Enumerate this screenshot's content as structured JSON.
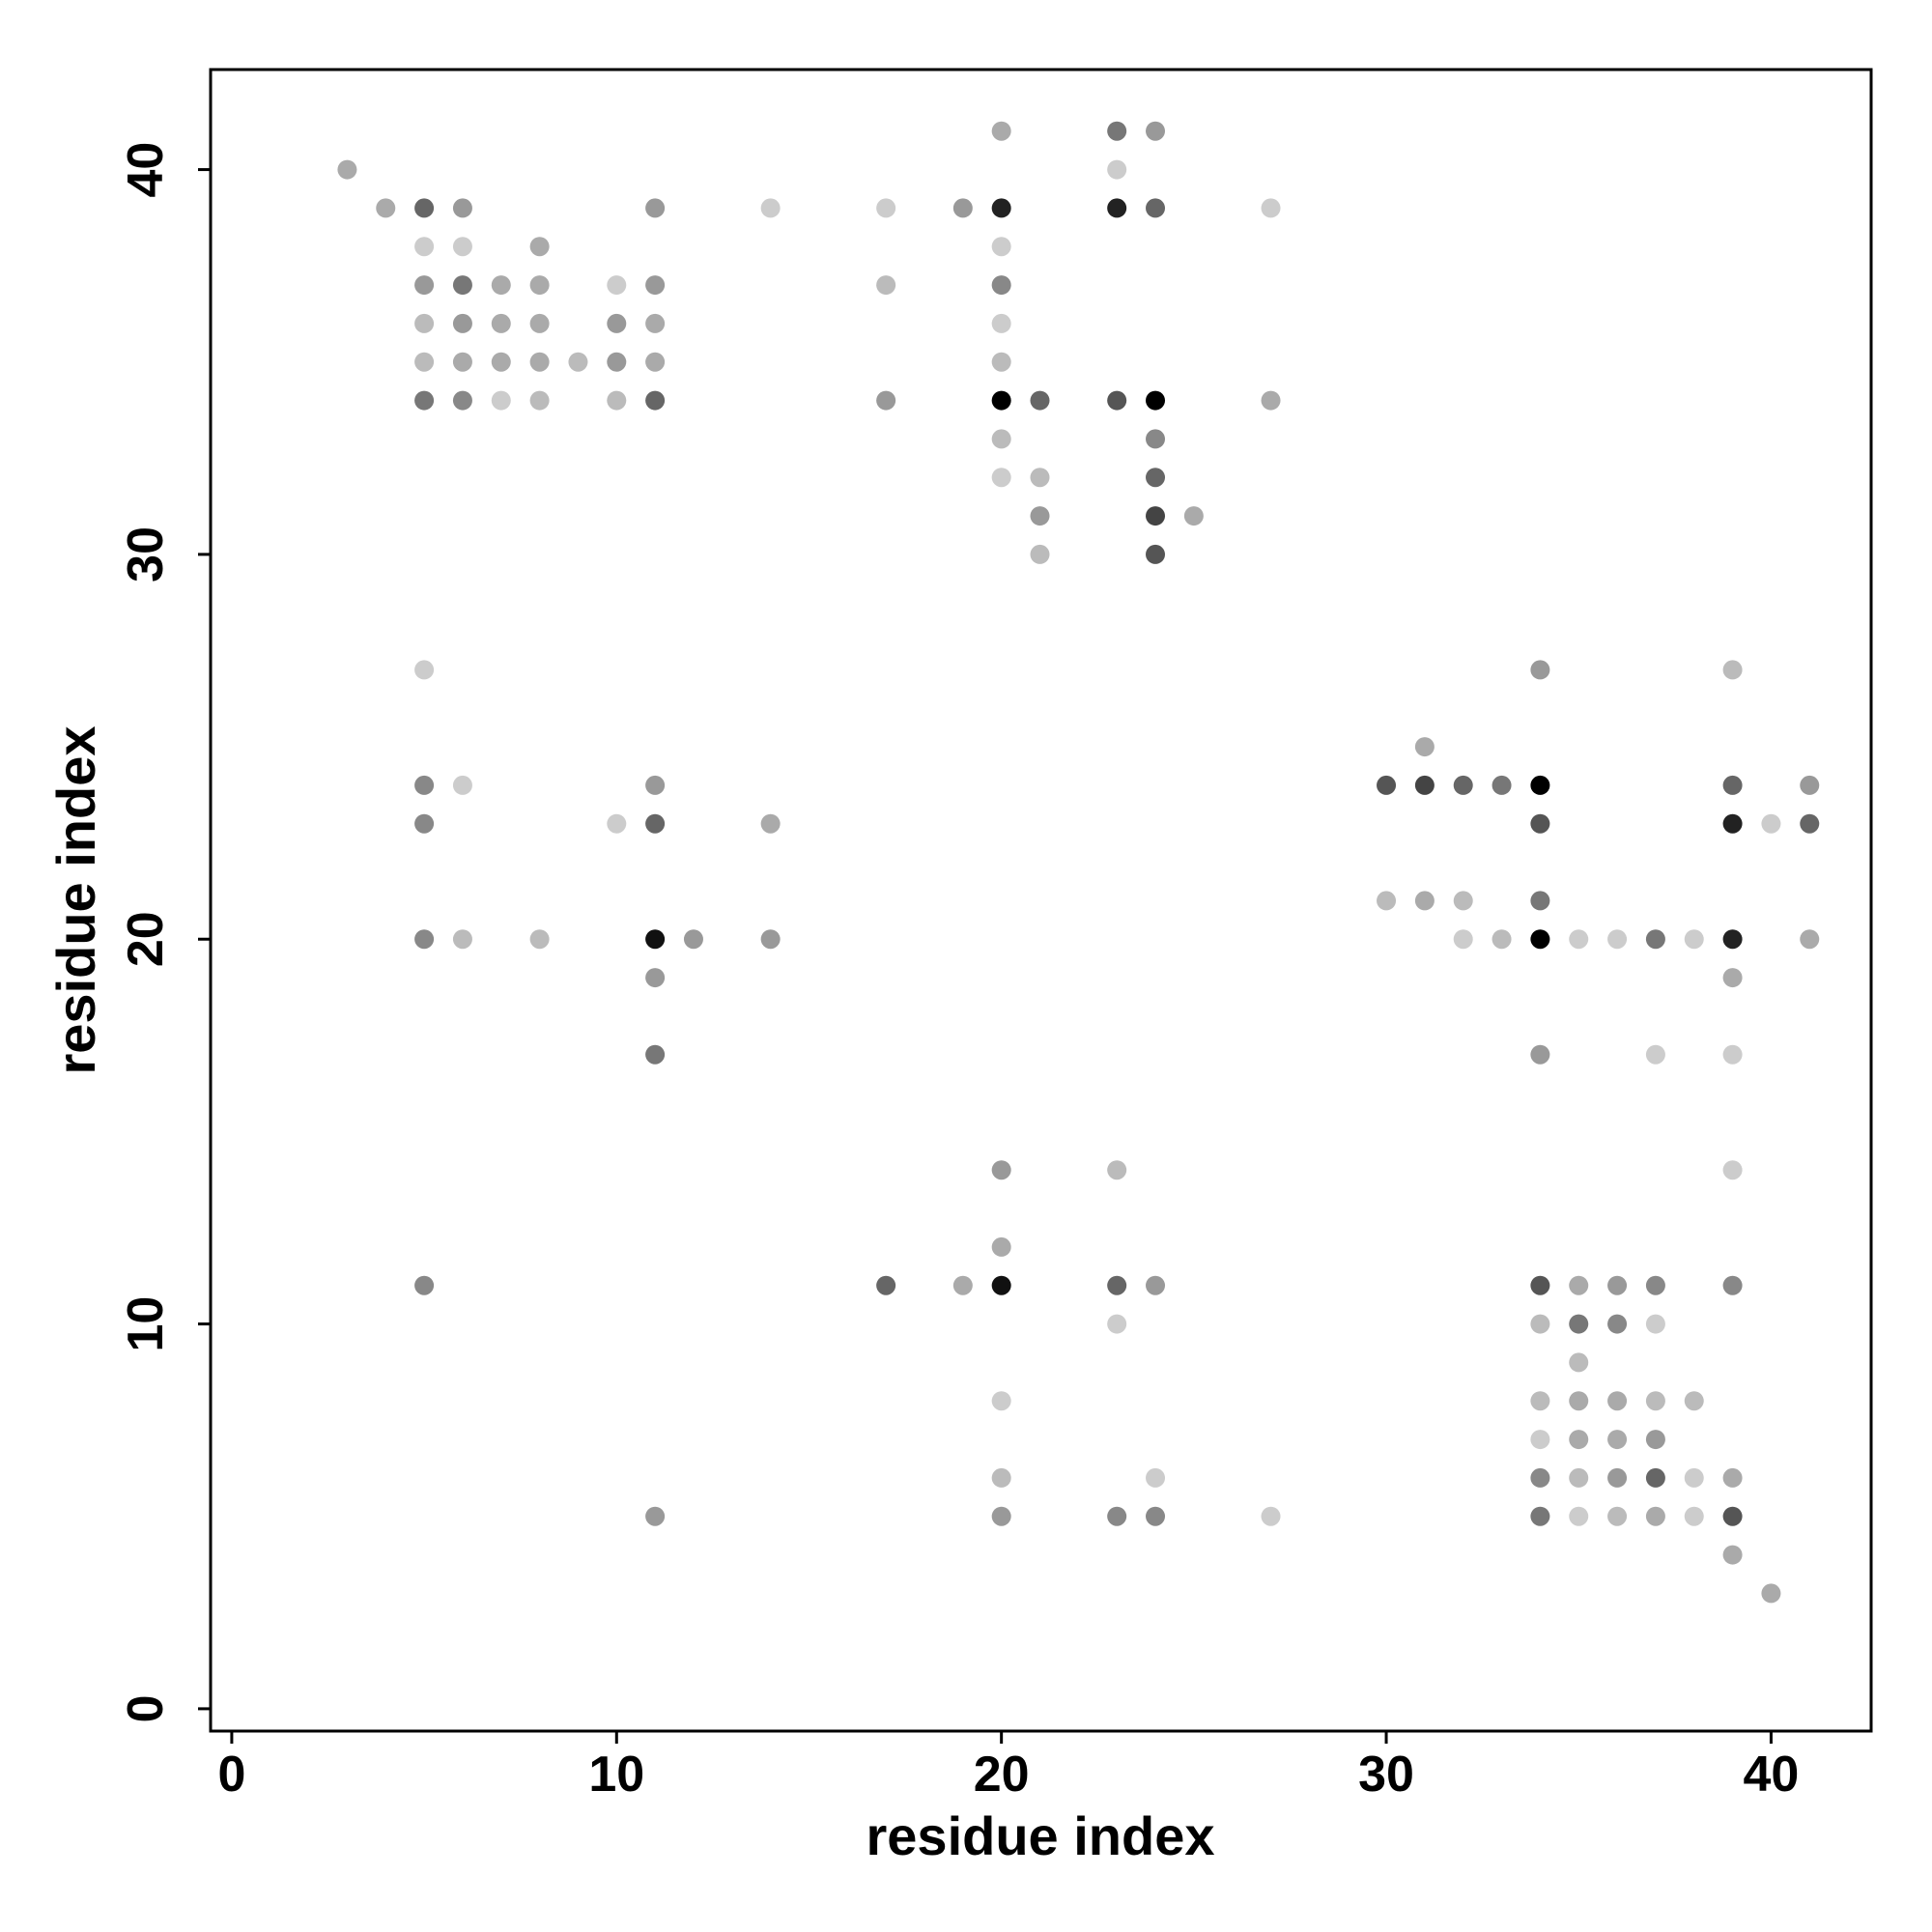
{
  "chart_data": {
    "type": "scatter",
    "x_label": "residue index",
    "y_label": "residue index",
    "xlim": [
      -0.55,
      42.6
    ],
    "ylim": [
      -0.58,
      42.6
    ],
    "xticks": [
      0,
      10,
      20,
      30,
      40
    ],
    "yticks": [
      0,
      10,
      20,
      30,
      40
    ],
    "x": [
      20,
      23,
      24,
      3,
      23,
      4,
      5,
      6,
      11,
      14,
      17,
      19,
      20,
      23,
      24,
      27,
      5,
      6,
      8,
      20,
      5,
      6,
      7,
      8,
      10,
      11,
      17,
      20,
      5,
      6,
      7,
      8,
      10,
      11,
      20,
      5,
      6,
      7,
      8,
      9,
      10,
      11,
      20,
      5,
      6,
      7,
      8,
      10,
      11,
      17,
      20,
      21,
      23,
      24,
      27,
      20,
      24,
      20,
      21,
      24,
      21,
      24,
      25,
      21,
      24,
      5,
      34,
      39,
      31,
      5,
      6,
      11,
      30,
      31,
      32,
      33,
      34,
      39,
      41,
      5,
      10,
      11,
      14,
      34,
      39,
      40,
      41,
      30,
      31,
      32,
      34,
      5,
      6,
      8,
      11,
      12,
      14,
      32,
      33,
      34,
      35,
      36,
      37,
      38,
      39,
      41,
      11,
      39,
      11,
      34,
      37,
      39,
      20,
      23,
      39,
      20,
      5,
      17,
      19,
      20,
      23,
      24,
      34,
      35,
      36,
      37,
      39,
      23,
      34,
      35,
      36,
      37,
      35,
      20,
      34,
      35,
      36,
      37,
      38,
      34,
      35,
      36,
      37,
      20,
      24,
      34,
      35,
      36,
      37,
      38,
      39,
      11,
      20,
      23,
      24,
      27,
      34,
      35,
      36,
      37,
      38,
      39,
      39,
      40
    ],
    "values": [
      41,
      41,
      41,
      40,
      40,
      39,
      39,
      39,
      39,
      39,
      39,
      39,
      39,
      39,
      39,
      39,
      38,
      38,
      38,
      38,
      37,
      37,
      37,
      37,
      37,
      37,
      37,
      37,
      36,
      36,
      36,
      36,
      36,
      36,
      36,
      35,
      35,
      35,
      35,
      35,
      35,
      35,
      35,
      34,
      34,
      34,
      34,
      34,
      34,
      34,
      34,
      34,
      34,
      34,
      34,
      33,
      33,
      32,
      32,
      32,
      31,
      31,
      31,
      30,
      30,
      27,
      27,
      27,
      25,
      24,
      24,
      24,
      24,
      24,
      24,
      24,
      24,
      24,
      24,
      23,
      23,
      23,
      23,
      23,
      23,
      23,
      23,
      21,
      21,
      21,
      21,
      20,
      20,
      20,
      20,
      20,
      20,
      20,
      20,
      20,
      20,
      20,
      20,
      20,
      20,
      20,
      19,
      19,
      17,
      17,
      17,
      17,
      14,
      14,
      14,
      12,
      11,
      11,
      11,
      11,
      11,
      11,
      11,
      11,
      11,
      11,
      11,
      10,
      10,
      10,
      10,
      10,
      9,
      8,
      8,
      8,
      8,
      8,
      8,
      7,
      7,
      7,
      7,
      6,
      6,
      6,
      6,
      6,
      6,
      6,
      6,
      5,
      5,
      5,
      5,
      5,
      5,
      5,
      5,
      5,
      5,
      5,
      4,
      3
    ],
    "colors": [
      "#aaa",
      "#777",
      "#999",
      "#aaa",
      "#ccc",
      "#aaa",
      "#666",
      "#999",
      "#999",
      "#ccc",
      "#ccc",
      "#999",
      "#222",
      "#222",
      "#666",
      "#ccc",
      "#ccc",
      "#ccc",
      "#aaa",
      "#ccc",
      "#999",
      "#777",
      "#aaa",
      "#aaa",
      "#ccc",
      "#999",
      "#bbb",
      "#888",
      "#bbb",
      "#999",
      "#aaa",
      "#aaa",
      "#999",
      "#aaa",
      "#ccc",
      "#bbb",
      "#aaa",
      "#aaa",
      "#aaa",
      "#bbb",
      "#999",
      "#aaa",
      "#bbb",
      "#777",
      "#888",
      "#ccc",
      "#bbb",
      "#bbb",
      "#666",
      "#999",
      "#000",
      "#666",
      "#555",
      "#000",
      "#aaa",
      "#bbb",
      "#888",
      "#ccc",
      "#bbb",
      "#666",
      "#999",
      "#444",
      "#aaa",
      "#bbb",
      "#555",
      "#ccc",
      "#999",
      "#bbb",
      "#aaa",
      "#888",
      "#ccc",
      "#999",
      "#555",
      "#444",
      "#666",
      "#777",
      "#000",
      "#666",
      "#999",
      "#888",
      "#ccc",
      "#666",
      "#aaa",
      "#555",
      "#222",
      "#ccc",
      "#666",
      "#bbb",
      "#aaa",
      "#bbb",
      "#777",
      "#888",
      "#bbb",
      "#bbb",
      "#111",
      "#999",
      "#999",
      "#ccc",
      "#bbb",
      "#000",
      "#ccc",
      "#ccc",
      "#777",
      "#ccc",
      "#222",
      "#aaa",
      "#999",
      "#aaa",
      "#777",
      "#999",
      "#ccc",
      "#ccc",
      "#999",
      "#bbb",
      "#ccc",
      "#aaa",
      "#888",
      "#666",
      "#aaa",
      "#111",
      "#666",
      "#999",
      "#555",
      "#aaa",
      "#999",
      "#888",
      "#888",
      "#ccc",
      "#bbb",
      "#777",
      "#888",
      "#ccc",
      "#bbb",
      "#ccc",
      "#bbb",
      "#aaa",
      "#aaa",
      "#bbb",
      "#bbb",
      "#ccc",
      "#aaa",
      "#aaa",
      "#999",
      "#bbb",
      "#ccc",
      "#888",
      "#bbb",
      "#999",
      "#666",
      "#ccc",
      "#aaa",
      "#999",
      "#999",
      "#888",
      "#888",
      "#ccc",
      "#777",
      "#ccc",
      "#bbb",
      "#aaa",
      "#ccc",
      "#555",
      "#aaa",
      "#aaa"
    ]
  }
}
